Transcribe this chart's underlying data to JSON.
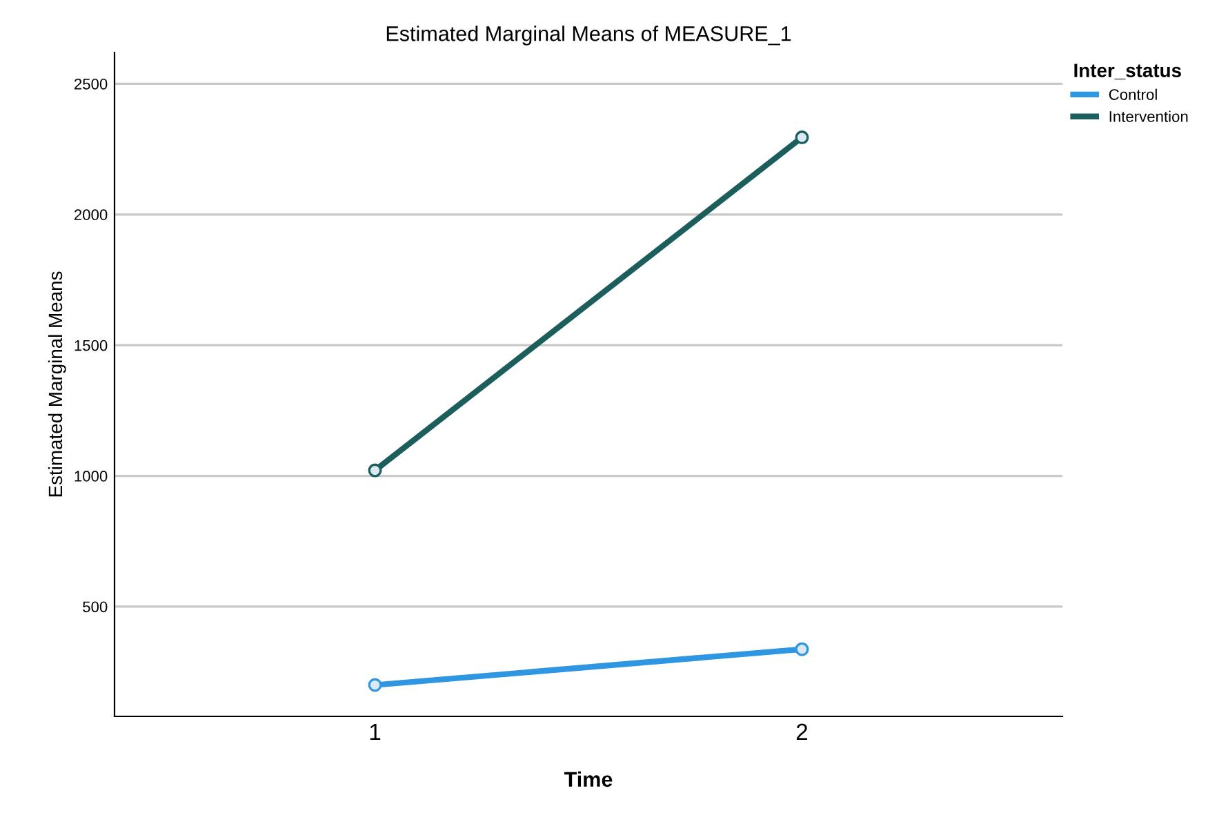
{
  "chart_data": {
    "type": "line",
    "title": "Estimated Marginal Means of MEASURE_1",
    "xlabel": "Time",
    "ylabel": "Estimated Marginal Means",
    "legend_title": "Inter_status",
    "categories": [
      "1",
      "2"
    ],
    "series": [
      {
        "name": "Control",
        "color": "#2f96e2",
        "values": [
          200,
          337
        ]
      },
      {
        "name": "Intervention",
        "color": "#1b5e5b",
        "values": [
          1021,
          2295
        ]
      }
    ],
    "ylim": [
      80,
      2620
    ],
    "yticks": [
      500,
      1000,
      1500,
      2000,
      2500
    ],
    "grid": "y",
    "legend": "top right",
    "marker": "circle",
    "line_style": "solid"
  }
}
